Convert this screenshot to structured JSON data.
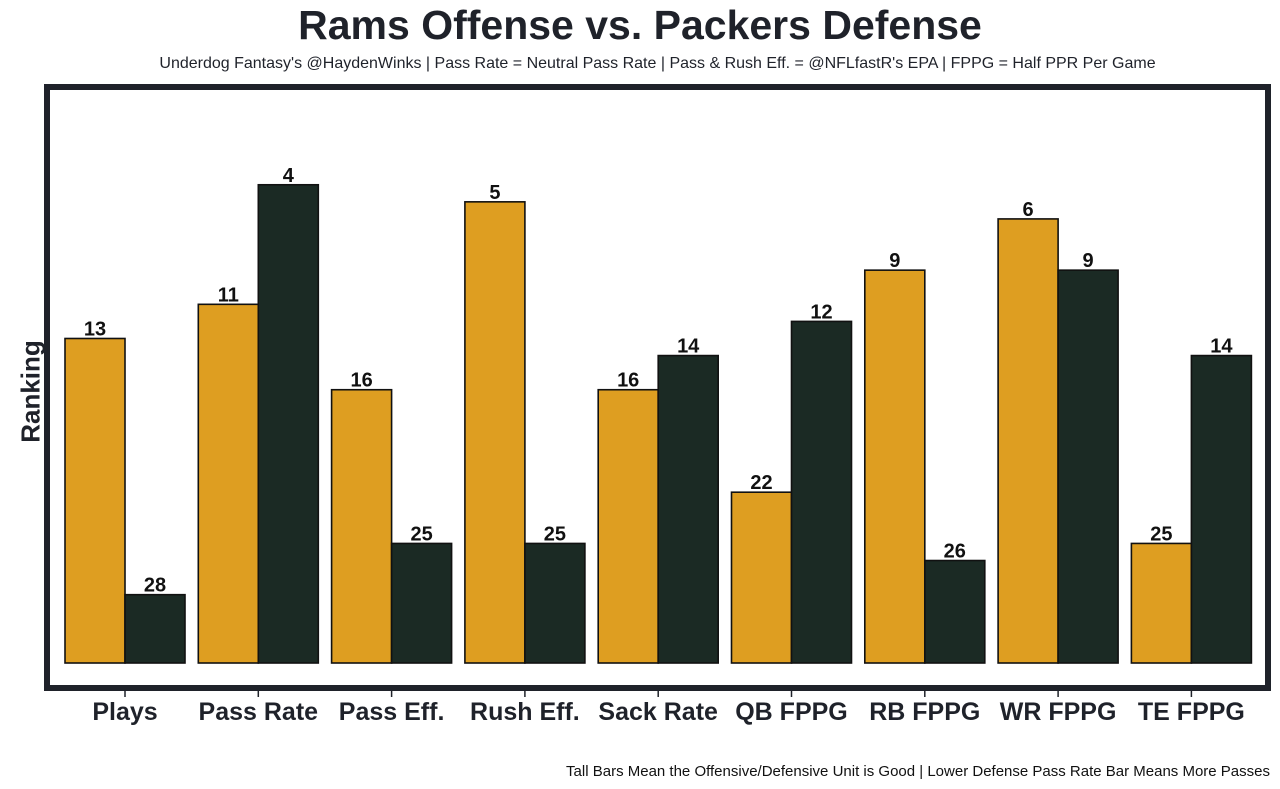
{
  "chart_data": {
    "type": "bar",
    "title": "Rams Offense vs. Packers Defense",
    "subtitle": "Underdog Fantasy's @HaydenWinks | Pass Rate = Neutral Pass Rate | Pass & Rush Eff. = @NFLfastR's EPA | FPPG = Half PPR Per Game",
    "footnote": "Tall Bars Mean the Offensive/Defensive Unit is Good | Lower Defense Pass Rate Bar Means More Passes",
    "xlabel": "",
    "ylabel": "Ranking",
    "categories": [
      "Plays",
      "Pass Rate",
      "Pass Eff.",
      "Rush Eff.",
      "Sack Rate",
      "QB FPPG",
      "RB FPPG",
      "WR FPPG",
      "TE FPPG"
    ],
    "series": [
      {
        "name": "Rams Offense",
        "color": "#DE9E21",
        "values": [
          13,
          11,
          16,
          5,
          16,
          22,
          9,
          6,
          25
        ]
      },
      {
        "name": "Packers Defense",
        "color": "#1B2A24",
        "values": [
          28,
          4,
          25,
          25,
          14,
          12,
          26,
          9,
          14
        ]
      }
    ],
    "value_meaning": "rank (1 = best); bar height = 32 - rank",
    "grid": false,
    "legend": "none",
    "frame_color": "#1f222a"
  }
}
